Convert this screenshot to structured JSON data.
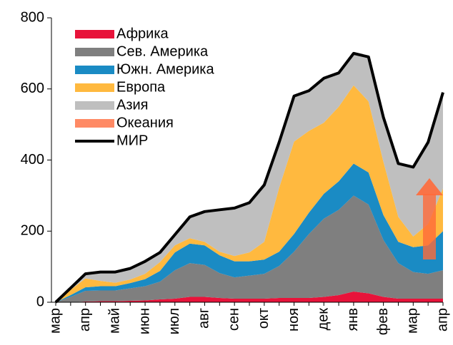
{
  "chart_data": {
    "type": "area",
    "stacked": true,
    "categories": [
      "мар",
      null,
      "апр",
      null,
      "май",
      null,
      "июн",
      null,
      "июл",
      null,
      "авг",
      null,
      "сен",
      null,
      "окт",
      null,
      "ноя",
      null,
      "дек",
      null,
      "янв",
      null,
      "фев",
      null,
      "мар",
      null,
      "апр"
    ],
    "series": [
      {
        "name": "Африка",
        "color": "#e8133a",
        "values": [
          0,
          0,
          2,
          3,
          3,
          4,
          5,
          8,
          10,
          15,
          15,
          12,
          10,
          10,
          10,
          12,
          12,
          12,
          15,
          20,
          30,
          25,
          15,
          10,
          10,
          10,
          10
        ]
      },
      {
        "name": "Сев. Америка",
        "color": "#7f7f7f",
        "values": [
          0,
          15,
          30,
          30,
          30,
          35,
          40,
          50,
          80,
          95,
          90,
          70,
          60,
          65,
          70,
          90,
          130,
          180,
          220,
          240,
          270,
          250,
          160,
          100,
          75,
          70,
          80
        ]
      },
      {
        "name": "Южн. Америка",
        "color": "#1a8bc4",
        "values": [
          0,
          5,
          10,
          12,
          12,
          15,
          20,
          30,
          50,
          55,
          55,
          50,
          45,
          40,
          40,
          40,
          50,
          60,
          70,
          80,
          90,
          90,
          70,
          60,
          70,
          80,
          110
        ]
      },
      {
        "name": "Европа",
        "color": "#ffb93f",
        "values": [
          0,
          15,
          25,
          15,
          10,
          10,
          15,
          25,
          20,
          15,
          10,
          10,
          15,
          25,
          50,
          180,
          260,
          230,
          200,
          210,
          220,
          200,
          150,
          70,
          30,
          60,
          120
        ]
      },
      {
        "name": "Азия",
        "color": "#bfbfbf",
        "values": [
          0,
          5,
          13,
          25,
          30,
          31,
          35,
          27,
          30,
          60,
          85,
          118,
          135,
          140,
          160,
          128,
          128,
          113,
          125,
          95,
          90,
          125,
          125,
          150,
          195,
          230,
          270
        ]
      },
      {
        "name": "Океания",
        "color": "#ff8a65",
        "values": [
          0,
          0,
          0,
          0,
          0,
          0,
          0,
          0,
          0,
          0,
          0,
          0,
          0,
          0,
          0,
          0,
          0,
          0,
          0,
          0,
          0,
          0,
          0,
          0,
          0,
          0,
          0
        ]
      },
      {
        "name": "МИР",
        "color": "#000000",
        "kind": "line",
        "values": [
          0,
          40,
          80,
          85,
          85,
          95,
          115,
          140,
          190,
          240,
          255,
          260,
          265,
          280,
          330,
          450,
          580,
          595,
          630,
          645,
          700,
          690,
          520,
          390,
          380,
          450,
          590
        ]
      }
    ],
    "ylim": [
      0,
      800
    ],
    "yticks": [
      0,
      200,
      400,
      600,
      800
    ]
  }
}
